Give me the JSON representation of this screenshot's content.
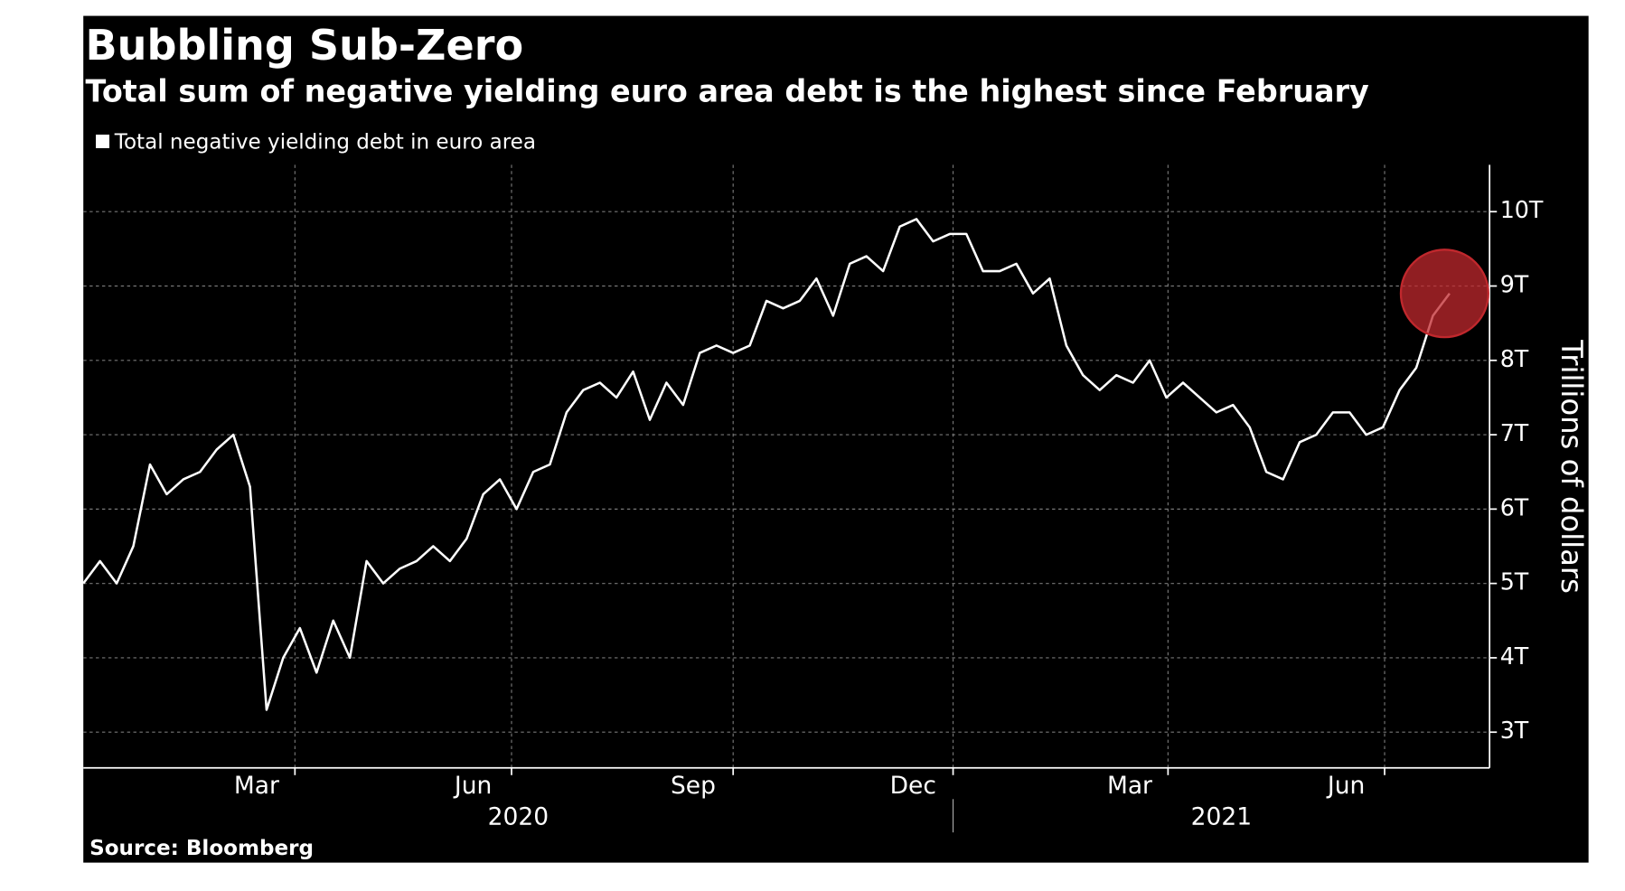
{
  "chart_data": {
    "type": "line",
    "title": "Bubbling Sub-Zero",
    "subtitle": "Total sum of negative yielding euro area debt is the highest since February",
    "source": "Source: Bloomberg",
    "y_label": "Trillions of dollars",
    "series": [
      {
        "name": "Total negative yielding debt in euro area",
        "color": "#ffffff",
        "values": [
          5.0,
          5.3,
          5.0,
          5.5,
          6.6,
          6.2,
          6.4,
          6.5,
          6.8,
          7.0,
          6.3,
          3.3,
          4.0,
          4.4,
          3.8,
          4.5,
          4.0,
          5.3,
          5.0,
          5.2,
          5.3,
          5.5,
          5.3,
          5.6,
          6.2,
          6.4,
          6.0,
          6.5,
          6.6,
          7.3,
          7.6,
          7.7,
          7.5,
          7.85,
          7.2,
          7.7,
          7.4,
          8.1,
          8.2,
          8.1,
          8.2,
          8.8,
          8.7,
          8.8,
          9.1,
          8.6,
          9.3,
          9.4,
          9.2,
          9.8,
          9.9,
          9.6,
          9.7,
          9.7,
          9.2,
          9.2,
          9.3,
          8.9,
          9.1,
          8.2,
          7.8,
          7.6,
          7.8,
          7.7,
          8.0,
          7.5,
          7.7,
          7.5,
          7.3,
          7.4,
          7.1,
          6.5,
          6.4,
          6.9,
          7.0,
          7.3,
          7.3,
          7.0,
          7.1,
          7.6,
          7.9,
          8.6,
          8.9
        ]
      }
    ],
    "xlim": [
      0,
      84.4
    ],
    "ylim": [
      2.52,
      10.63
    ],
    "yticks": [
      {
        "value": 3,
        "label": "3T"
      },
      {
        "value": 4,
        "label": "4T"
      },
      {
        "value": 5,
        "label": "5T"
      },
      {
        "value": 6,
        "label": "6T"
      },
      {
        "value": 7,
        "label": "7T"
      },
      {
        "value": 8,
        "label": "8T"
      },
      {
        "value": 9,
        "label": "9T"
      },
      {
        "value": 10,
        "label": "10T"
      }
    ],
    "xticks": [
      {
        "value": 10.4,
        "label": "Mar"
      },
      {
        "value": 23.4,
        "label": "Jun"
      },
      {
        "value": 36.6,
        "label": "Sep"
      },
      {
        "value": 49.8,
        "label": "Dec"
      },
      {
        "value": 62.8,
        "label": "Mar"
      },
      {
        "value": 75.8,
        "label": "Jun"
      }
    ],
    "xgrid": [
      12.7,
      25.7,
      39,
      52.2,
      65.1,
      78.1
    ],
    "year_labels": [
      {
        "value": 26.1,
        "label": "2020"
      },
      {
        "value": 68.3,
        "label": "2021"
      }
    ],
    "year_divider": 52.2,
    "grid": true,
    "highlight_color": "#c0282d"
  }
}
